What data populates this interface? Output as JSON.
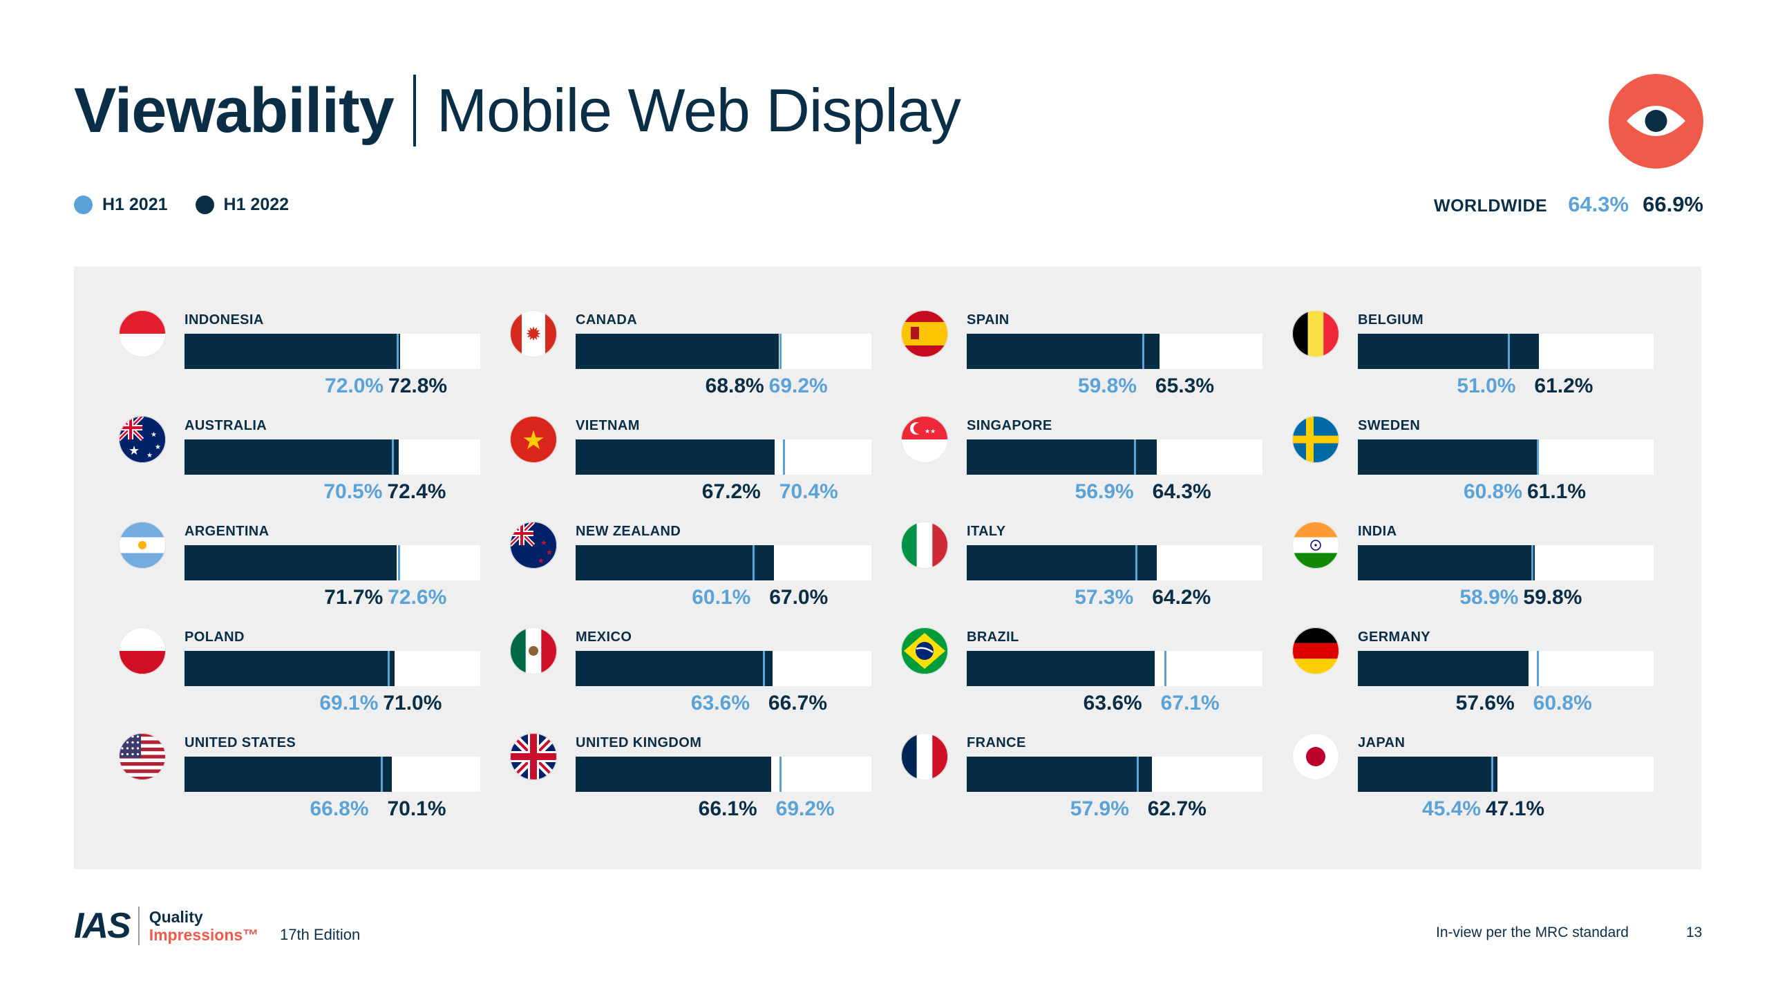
{
  "header": {
    "title_bold": "Viewability",
    "title_light": "Mobile Web Display"
  },
  "legend": [
    {
      "label": "H1 2021",
      "color": "#5ba3d6"
    },
    {
      "label": "H1 2022",
      "color": "#0a2e45"
    }
  ],
  "worldwide": {
    "label": "WORLDWIDE",
    "h1_2021": "64.3%",
    "h1_2022": "66.9%"
  },
  "chart_data": {
    "type": "bar",
    "series": [
      {
        "name": "H1 2021",
        "color": "#5ba3d6"
      },
      {
        "name": "H1 2022",
        "color": "#0a2e45"
      }
    ],
    "xlim": [
      0,
      100
    ],
    "columns": [
      [
        {
          "country": "INDONESIA",
          "flag": "indonesia-flag-icon",
          "h21": 72.0,
          "h22": 72.8,
          "h21_label": "72.0%",
          "h22_label": "72.8%"
        },
        {
          "country": "AUSTRALIA",
          "flag": "australia-flag-icon",
          "h21": 70.5,
          "h22": 72.4,
          "h21_label": "70.5%",
          "h22_label": "72.4%"
        },
        {
          "country": "ARGENTINA",
          "flag": "argentina-flag-icon",
          "h21": 72.6,
          "h22": 71.7,
          "h21_label": "72.6%",
          "h22_label": "71.7%"
        },
        {
          "country": "POLAND",
          "flag": "poland-flag-icon",
          "h21": 69.1,
          "h22": 71.0,
          "h21_label": "69.1%",
          "h22_label": "71.0%"
        },
        {
          "country": "UNITED STATES",
          "flag": "united-states-flag-icon",
          "h21": 66.8,
          "h22": 70.1,
          "h21_label": "66.8%",
          "h22_label": "70.1%"
        }
      ],
      [
        {
          "country": "CANADA",
          "flag": "canada-flag-icon",
          "h21": 69.2,
          "h22": 68.8,
          "h21_label": "69.2%",
          "h22_label": "68.8%"
        },
        {
          "country": "VIETNAM",
          "flag": "vietnam-flag-icon",
          "h21": 70.4,
          "h22": 67.2,
          "h21_label": "70.4%",
          "h22_label": "67.2%"
        },
        {
          "country": "NEW ZEALAND",
          "flag": "new-zealand-flag-icon",
          "h21": 60.1,
          "h22": 67.0,
          "h21_label": "60.1%",
          "h22_label": "67.0%"
        },
        {
          "country": "MEXICO",
          "flag": "mexico-flag-icon",
          "h21": 63.6,
          "h22": 66.7,
          "h21_label": "63.6%",
          "h22_label": "66.7%"
        },
        {
          "country": "UNITED KINGDOM",
          "flag": "united-kingdom-flag-icon",
          "h21": 69.2,
          "h22": 66.1,
          "h21_label": "69.2%",
          "h22_label": "66.1%"
        }
      ],
      [
        {
          "country": "SPAIN",
          "flag": "spain-flag-icon",
          "h21": 59.8,
          "h22": 65.3,
          "h21_label": "59.8%",
          "h22_label": "65.3%"
        },
        {
          "country": "SINGAPORE",
          "flag": "singapore-flag-icon",
          "h21": 56.9,
          "h22": 64.3,
          "h21_label": "56.9%",
          "h22_label": "64.3%"
        },
        {
          "country": "ITALY",
          "flag": "italy-flag-icon",
          "h21": 57.3,
          "h22": 64.2,
          "h21_label": "57.3%",
          "h22_label": "64.2%"
        },
        {
          "country": "BRAZIL",
          "flag": "brazil-flag-icon",
          "h21": 67.1,
          "h22": 63.6,
          "h21_label": "67.1%",
          "h22_label": "63.6%"
        },
        {
          "country": "FRANCE",
          "flag": "france-flag-icon",
          "h21": 57.9,
          "h22": 62.7,
          "h21_label": "57.9%",
          "h22_label": "62.7%"
        }
      ],
      [
        {
          "country": "BELGIUM",
          "flag": "belgium-flag-icon",
          "h21": 51.0,
          "h22": 61.2,
          "h21_label": "51.0%",
          "h22_label": "61.2%"
        },
        {
          "country": "SWEDEN",
          "flag": "sweden-flag-icon",
          "h21": 60.8,
          "h22": 61.1,
          "h21_label": "60.8%",
          "h22_label": "61.1%"
        },
        {
          "country": "INDIA",
          "flag": "india-flag-icon",
          "h21": 58.9,
          "h22": 59.8,
          "h21_label": "58.9%",
          "h22_label": "59.8%"
        },
        {
          "country": "GERMANY",
          "flag": "germany-flag-icon",
          "h21": 60.8,
          "h22": 57.6,
          "h21_label": "60.8%",
          "h22_label": "57.6%"
        },
        {
          "country": "JAPAN",
          "flag": "japan-flag-icon",
          "h21": 45.4,
          "h22": 47.1,
          "h21_label": "45.4%",
          "h22_label": "47.1%"
        }
      ]
    ]
  },
  "footer": {
    "logo_text": "IAS",
    "logo_line1": "Quality",
    "logo_line2": "Impressions™",
    "edition": "17th Edition",
    "note": "In-view per the MRC standard",
    "page": "13"
  }
}
